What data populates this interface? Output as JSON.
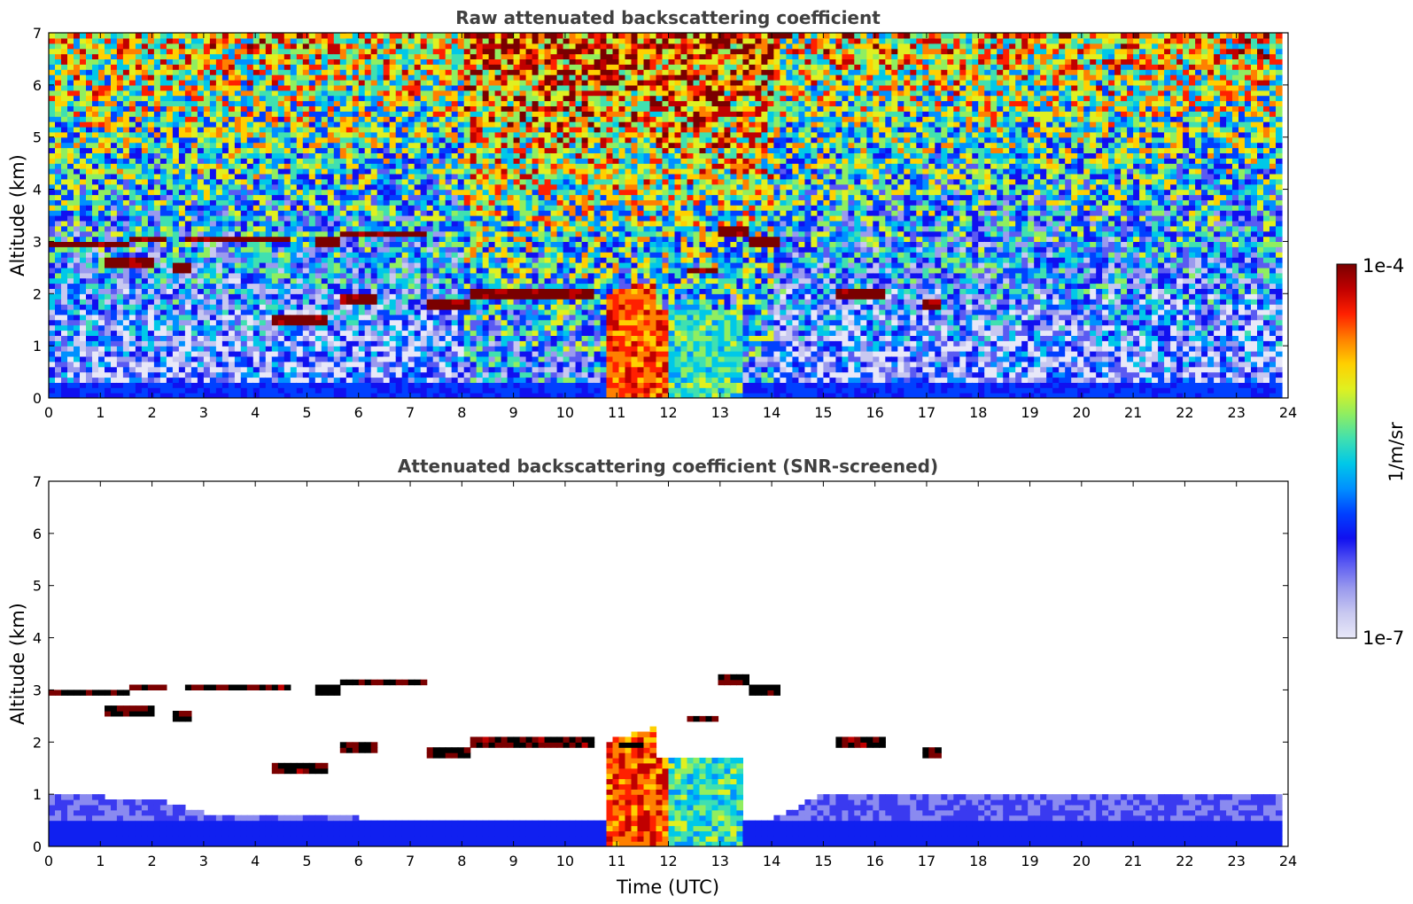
{
  "chart_data": [
    {
      "type": "heatmap",
      "title": "Raw attenuated backscattering coefficient",
      "xlabel": "",
      "ylabel": "Altitude (km)",
      "xlim": [
        0,
        24
      ],
      "ylim": [
        0,
        7
      ],
      "xticks": [
        "0",
        "1",
        "2",
        "3",
        "4",
        "5",
        "6",
        "7",
        "8",
        "9",
        "10",
        "11",
        "12",
        "13",
        "14",
        "15",
        "16",
        "17",
        "18",
        "19",
        "20",
        "21",
        "22",
        "23",
        "24"
      ],
      "yticks": [
        "0",
        "1",
        "2",
        "3",
        "4",
        "5",
        "6",
        "7"
      ],
      "screened": false,
      "cloud_layers": [
        {
          "t0": 0.0,
          "t1": 1.6,
          "alt": 2.95
        },
        {
          "t0": 1.6,
          "t1": 2.3,
          "alt": 3.05
        },
        {
          "t0": 2.7,
          "t1": 4.7,
          "alt": 3.05
        },
        {
          "t0": 5.2,
          "t1": 5.6,
          "alt": 3.0
        },
        {
          "t0": 5.6,
          "t1": 7.3,
          "alt": 3.15
        },
        {
          "t0": 1.1,
          "t1": 2.1,
          "alt": 2.6
        },
        {
          "t0": 2.4,
          "t1": 2.8,
          "alt": 2.5
        },
        {
          "t0": 4.3,
          "t1": 5.4,
          "alt": 1.5
        },
        {
          "t0": 5.7,
          "t1": 6.4,
          "alt": 1.9
        },
        {
          "t0": 7.3,
          "t1": 8.2,
          "alt": 1.8
        },
        {
          "t0": 8.2,
          "t1": 10.6,
          "alt": 2.0
        },
        {
          "t0": 11.0,
          "t1": 11.6,
          "alt": 1.95
        },
        {
          "t0": 12.3,
          "t1": 12.9,
          "alt": 2.45
        },
        {
          "t0": 12.9,
          "t1": 13.5,
          "alt": 3.2
        },
        {
          "t0": 13.6,
          "t1": 14.1,
          "alt": 3.0
        },
        {
          "t0": 15.2,
          "t1": 16.2,
          "alt": 2.0
        },
        {
          "t0": 16.9,
          "t1": 17.3,
          "alt": 1.8
        }
      ],
      "precip": [
        {
          "t0": 10.75,
          "t1": 13.45
        }
      ]
    },
    {
      "type": "heatmap",
      "title": "Attenuated backscattering coefficient (SNR-screened)",
      "xlabel": "Time (UTC)",
      "ylabel": "Altitude (km)",
      "xlim": [
        0,
        24
      ],
      "ylim": [
        0,
        7
      ],
      "xticks": [
        "0",
        "1",
        "2",
        "3",
        "4",
        "5",
        "6",
        "7",
        "8",
        "9",
        "10",
        "11",
        "12",
        "13",
        "14",
        "15",
        "16",
        "17",
        "18",
        "19",
        "20",
        "21",
        "22",
        "23",
        "24"
      ],
      "yticks": [
        "0",
        "1",
        "2",
        "3",
        "4",
        "5",
        "6",
        "7"
      ],
      "screened": true,
      "boundary_layer_top_km": [
        {
          "t": 0,
          "h": 0.95
        },
        {
          "t": 2,
          "h": 0.85
        },
        {
          "t": 3,
          "h": 0.6
        },
        {
          "t": 6,
          "h": 0.5
        },
        {
          "t": 10.7,
          "h": 0.5
        },
        {
          "t": 14,
          "h": 0.5
        },
        {
          "t": 15,
          "h": 1.0
        },
        {
          "t": 17,
          "h": 0.9
        },
        {
          "t": 19,
          "h": 1.0
        },
        {
          "t": 21,
          "h": 0.9
        },
        {
          "t": 23.8,
          "h": 1.0
        }
      ]
    }
  ],
  "colorbar": {
    "label": "1/m/sr",
    "max_label": "1e-4",
    "min_label": "1e-7",
    "colors": [
      "#e8e8f8",
      "#c8c8f0",
      "#9a9aee",
      "#5a5af2",
      "#1010f0",
      "#0040ff",
      "#0090ff",
      "#00c8e8",
      "#40e0b0",
      "#90ee60",
      "#e0f020",
      "#ffd000",
      "#ff8000",
      "#ff2000",
      "#c00000",
      "#7a0000"
    ]
  }
}
